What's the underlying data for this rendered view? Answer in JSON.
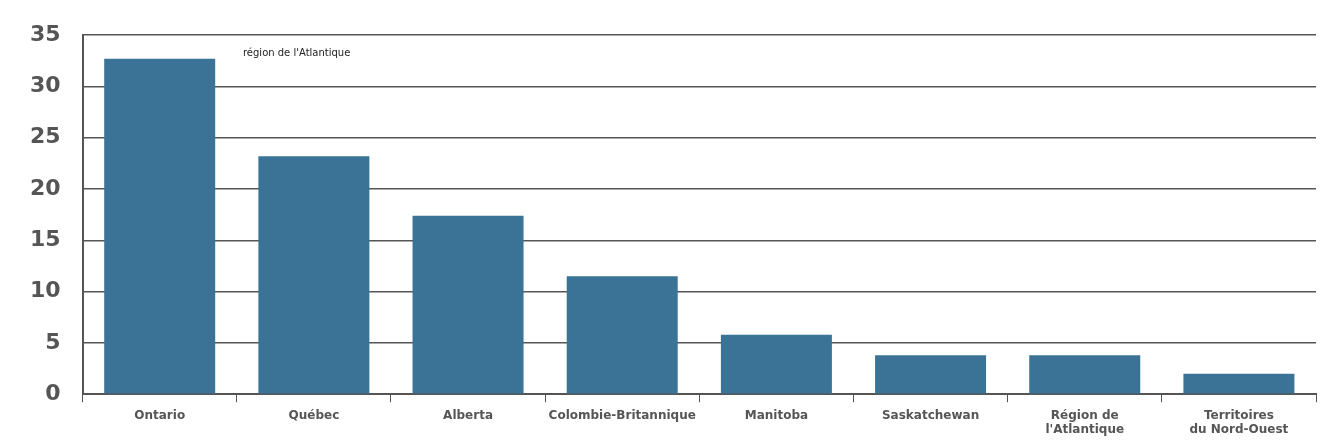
{
  "chart_data": {
    "type": "bar",
    "categories": [
      "Ontario",
      "Québec",
      "Alberta",
      "Colombie-Britannique",
      "Manitoba",
      "Saskatchewan",
      "Région de l'Atlantique",
      "Territoires du Nord-Ouest"
    ],
    "values": [
      32.7,
      23.2,
      17.4,
      11.5,
      5.8,
      3.8,
      3.8,
      2.0
    ],
    "color": "#3b7396",
    "ylim": [
      0,
      35
    ],
    "yticks": [
      0,
      5,
      10,
      15,
      20,
      25,
      30,
      35
    ],
    "grid": "y",
    "annotations": [
      "région de l'Atlantique"
    ]
  }
}
